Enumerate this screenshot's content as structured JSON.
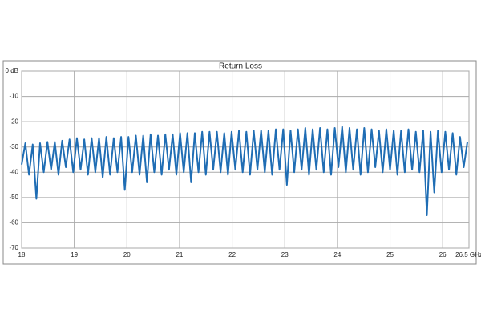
{
  "chart_data": {
    "type": "line",
    "title": "Return Loss",
    "x": [
      18,
      18.07,
      18.14,
      18.21,
      18.28,
      18.35,
      18.42,
      18.49,
      18.56,
      18.63,
      18.7,
      18.77,
      18.84,
      18.91,
      18.98,
      19.05,
      19.12,
      19.19,
      19.26,
      19.33,
      19.4,
      19.47,
      19.54,
      19.61,
      19.68,
      19.75,
      19.82,
      19.89,
      19.96,
      20.03,
      20.1,
      20.17,
      20.24,
      20.31,
      20.38,
      20.45,
      20.52,
      20.59,
      20.66,
      20.73,
      20.8,
      20.87,
      20.94,
      21.01,
      21.08,
      21.15,
      21.22,
      21.29,
      21.36,
      21.43,
      21.5,
      21.57,
      21.64,
      21.71,
      21.78,
      21.85,
      21.92,
      21.99,
      22.06,
      22.13,
      22.2,
      22.27,
      22.34,
      22.41,
      22.48,
      22.55,
      22.62,
      22.69,
      22.76,
      22.83,
      22.9,
      22.97,
      23.04,
      23.11,
      23.18,
      23.25,
      23.32,
      23.39,
      23.46,
      23.53,
      23.6,
      23.67,
      23.74,
      23.81,
      23.88,
      23.95,
      24.02,
      24.09,
      24.16,
      24.23,
      24.3,
      24.37,
      24.44,
      24.51,
      24.58,
      24.65,
      24.72,
      24.79,
      24.86,
      24.93,
      25,
      25.07,
      25.14,
      25.21,
      25.28,
      25.35,
      25.42,
      25.49,
      25.56,
      25.63,
      25.7,
      25.77,
      25.84,
      25.91,
      25.98,
      26.05,
      26.12,
      26.19,
      26.26,
      26.33,
      26.4,
      26.47
    ],
    "series": [
      {
        "color": "#1f6db4",
        "values": [
          -37,
          -28.5,
          -41,
          -29,
          -50.5,
          -28.5,
          -40,
          -28,
          -39,
          -28,
          -41,
          -27.5,
          -38,
          -27,
          -40,
          -26.5,
          -39,
          -27,
          -41,
          -26.5,
          -40,
          -26.5,
          -42,
          -26,
          -41,
          -26.5,
          -40,
          -26,
          -47,
          -26,
          -40,
          -25.5,
          -41,
          -25.5,
          -44,
          -25,
          -40,
          -25.5,
          -41,
          -25,
          -39,
          -25,
          -41,
          -24.5,
          -40,
          -24.5,
          -44,
          -24.5,
          -40,
          -24,
          -41,
          -24,
          -39,
          -24,
          -40,
          -24.5,
          -41,
          -24,
          -39,
          -23.5,
          -40,
          -24,
          -41,
          -23.5,
          -39,
          -23.5,
          -40,
          -23.5,
          -41,
          -23,
          -39,
          -23,
          -45,
          -23.5,
          -40,
          -23,
          -39,
          -22.5,
          -41,
          -23,
          -39,
          -22.5,
          -40,
          -23,
          -41,
          -22.5,
          -38,
          -22,
          -40,
          -22.5,
          -39,
          -23,
          -41,
          -22.5,
          -40,
          -23,
          -38,
          -23.5,
          -40,
          -23,
          -39,
          -23.5,
          -41,
          -23.5,
          -40,
          -23,
          -39,
          -24,
          -40,
          -23.5,
          -57,
          -24,
          -48,
          -23.5,
          -40,
          -24,
          -39,
          -24.5,
          -41,
          -26,
          -38,
          -28
        ]
      }
    ],
    "xlim": [
      18,
      26.5
    ],
    "ylim": [
      -70,
      0
    ],
    "xticks": [
      18,
      19,
      20,
      21,
      22,
      23,
      24,
      25,
      26,
      {
        "value": 26.5,
        "label": "26.5 GHz"
      }
    ],
    "yticks": [
      {
        "value": 0,
        "label": "0 dB"
      },
      -10,
      -20,
      -30,
      -40,
      -50,
      -60,
      -70
    ],
    "grid": true
  }
}
